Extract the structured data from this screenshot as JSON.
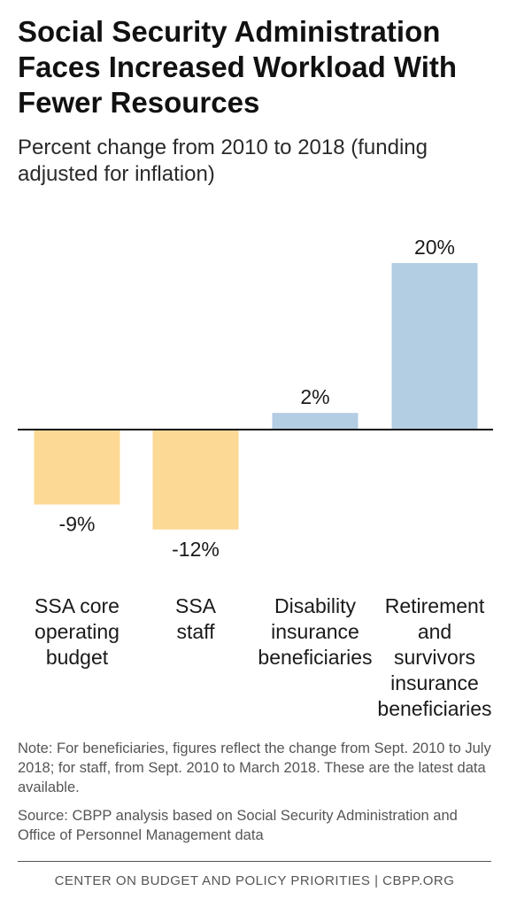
{
  "title": "Social Security Administration Faces Increased Workload With Fewer Resources",
  "subtitle": "Percent change from 2010 to 2018 (funding adjusted for inflation)",
  "chart_data": {
    "type": "bar",
    "categories": [
      [
        "SSA core",
        "operating",
        "budget"
      ],
      [
        "SSA",
        "staff"
      ],
      [
        "Disability",
        "insurance",
        "beneficiaries"
      ],
      [
        "Retirement",
        "and",
        "survivors",
        "insurance",
        "beneficiaries"
      ]
    ],
    "values": [
      -9,
      -12,
      2,
      20
    ],
    "data_labels": [
      "-9%",
      "-12%",
      "2%",
      "20%"
    ],
    "colors": [
      "#fcd995",
      "#fcd995",
      "#b3cde3",
      "#b3cde3"
    ],
    "ylim": [
      -12,
      20
    ],
    "grid": false,
    "legend": "none"
  },
  "note": "Note: For beneficiaries, figures reflect the change from Sept. 2010 to July 2018; for staff, from Sept. 2010 to March 2018. These are the latest data available.",
  "source": "Source: CBPP analysis based on Social Security Administration and Office of Personnel Management data",
  "footer": "CENTER ON BUDGET AND POLICY PRIORITIES | CBPP.ORG"
}
